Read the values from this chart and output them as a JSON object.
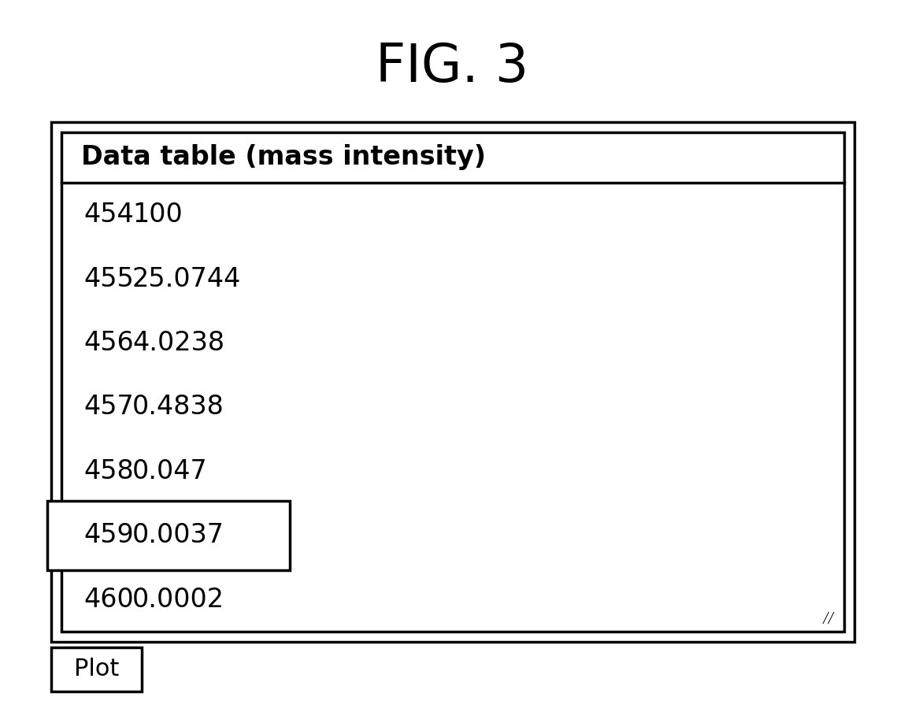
{
  "title": "FIG. 3",
  "table_header": "Data table (mass intensity)",
  "rows": [
    [
      "454",
      "100"
    ],
    [
      "455",
      "25.0744"
    ],
    [
      "456",
      "4.0238"
    ],
    [
      "457",
      "0.4838"
    ],
    [
      "458",
      "0.047"
    ],
    [
      "459",
      "0.0037"
    ],
    [
      "460",
      "0.0002"
    ]
  ],
  "highlighted_row": 5,
  "button_label": "Plot",
  "background_color": "#ffffff",
  "border_color": "#000000",
  "title_fontsize": 48,
  "header_fontsize": 24,
  "data_fontsize": 24,
  "button_fontsize": 22,
  "fig_width": 11.48,
  "fig_height": 8.99,
  "dpi": 100
}
